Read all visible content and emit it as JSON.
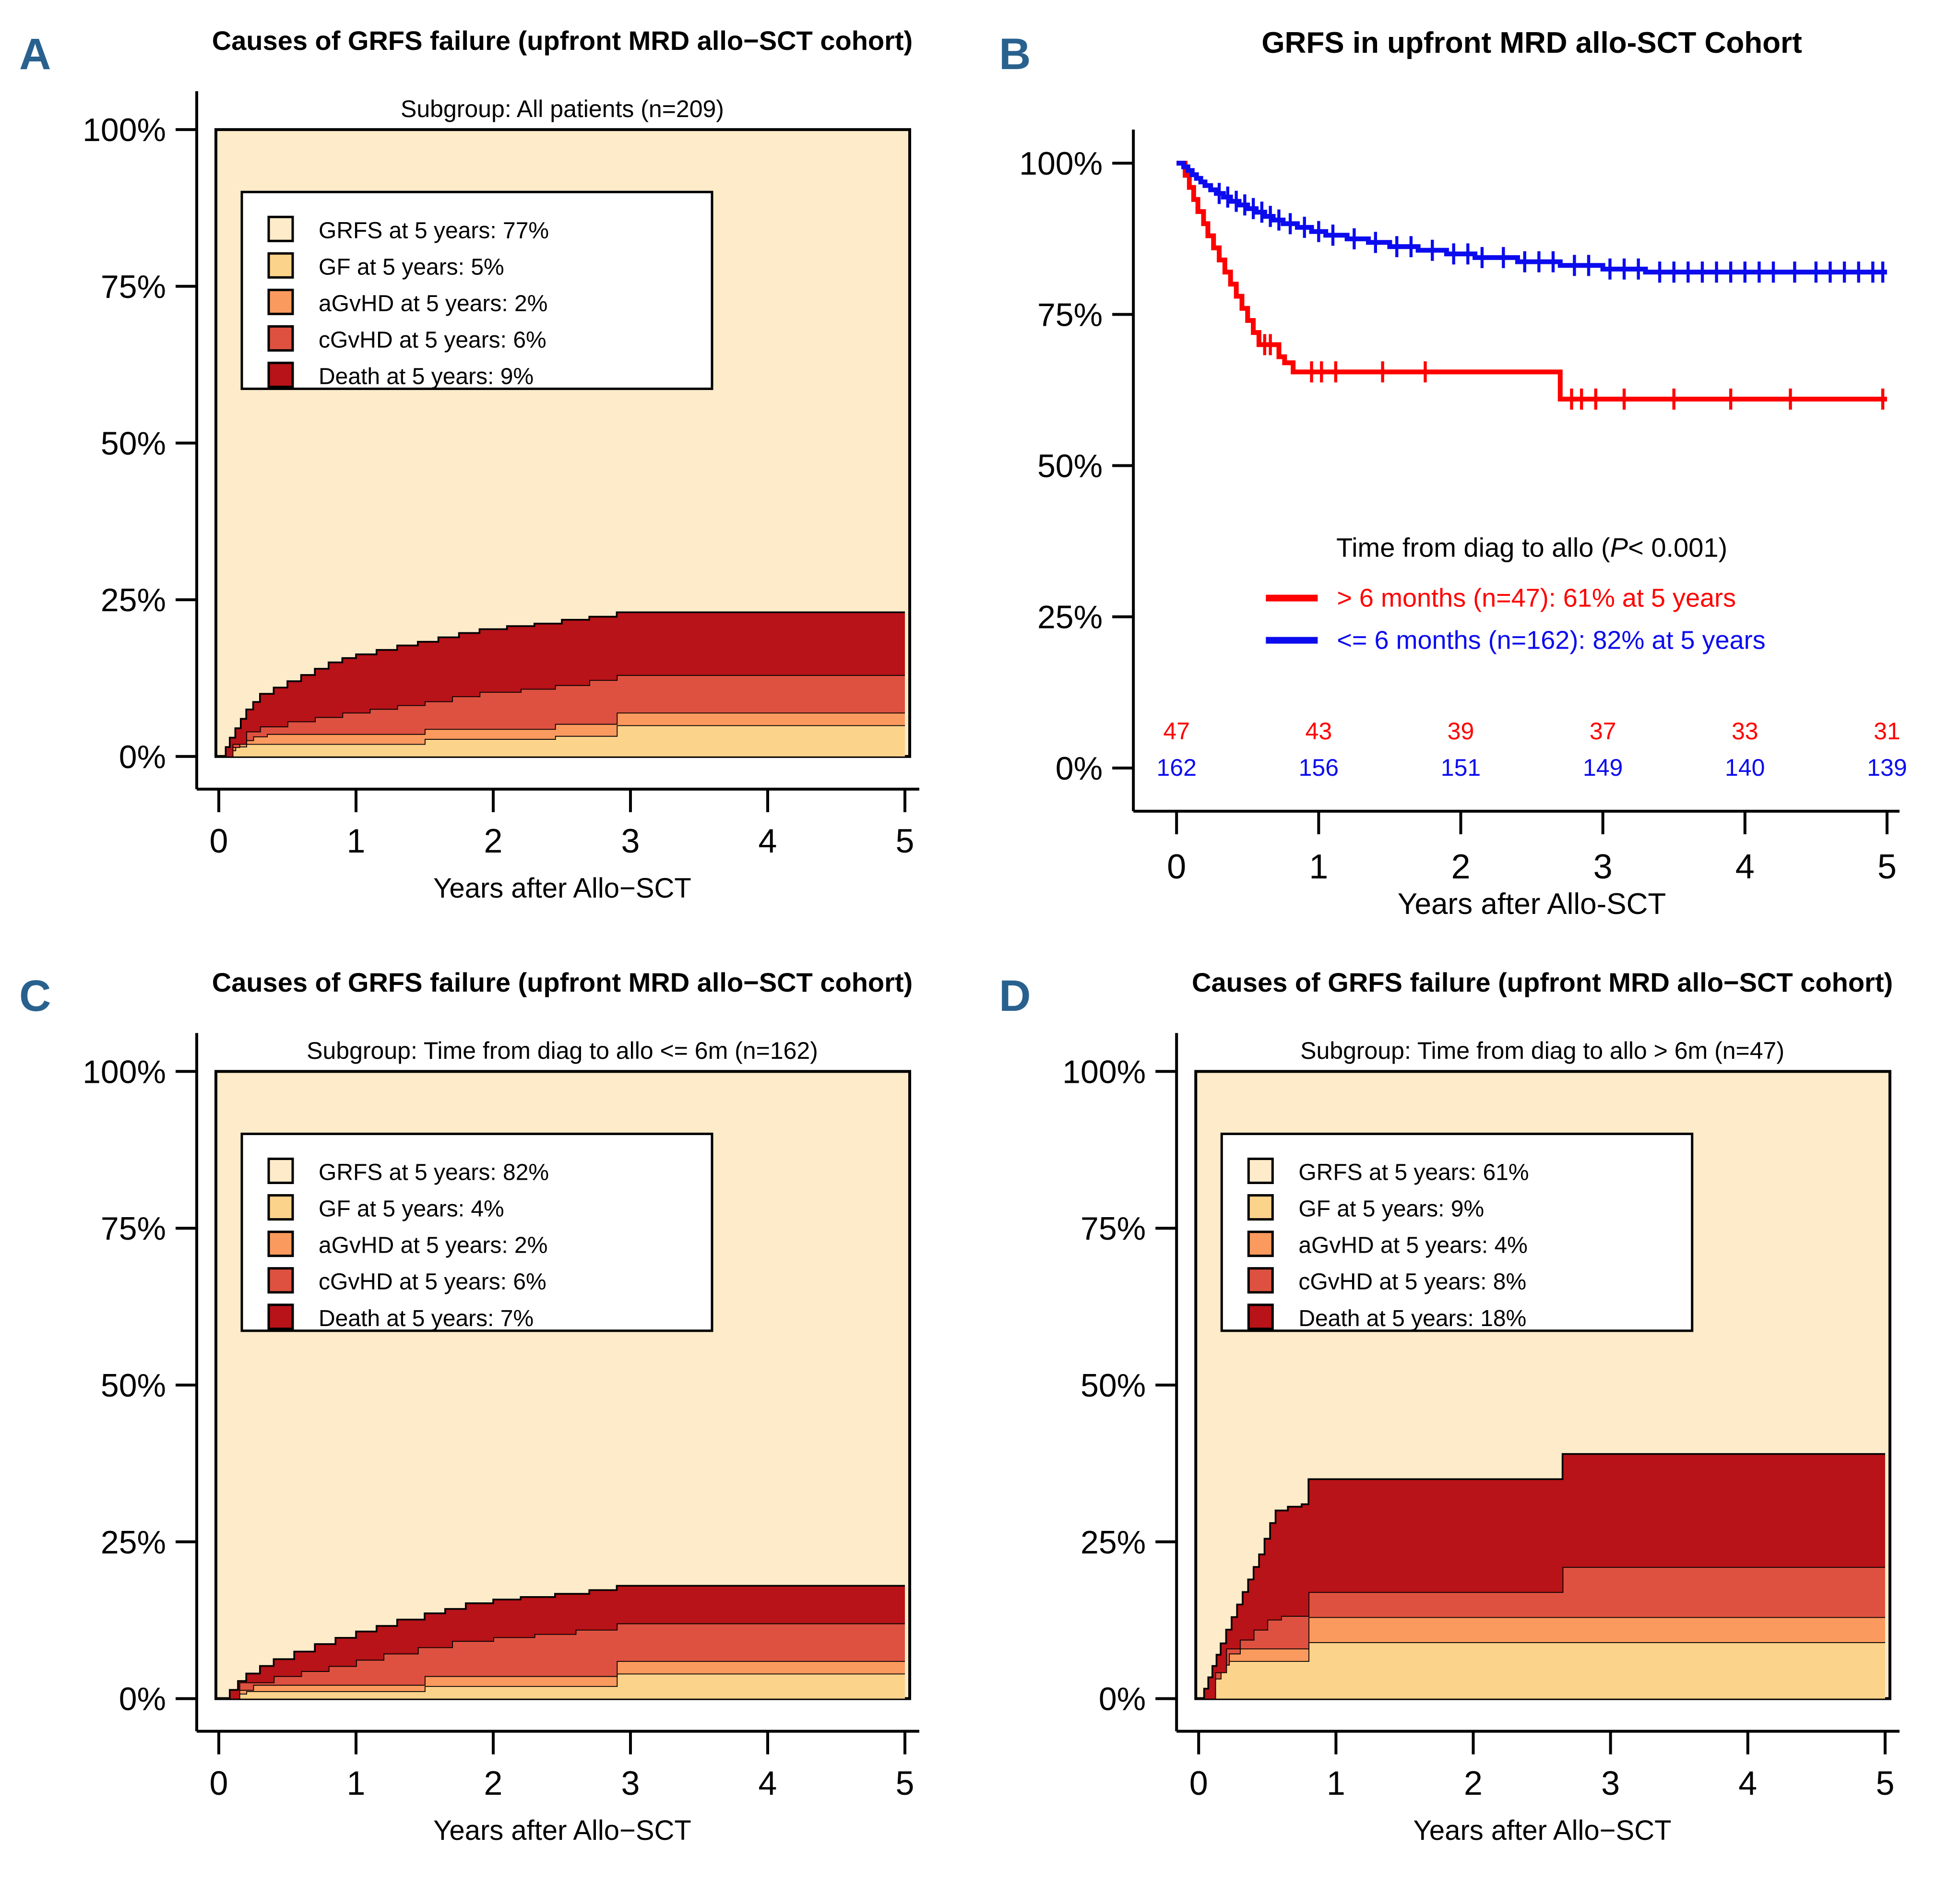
{
  "figure": {
    "background": "#ffffff",
    "letter_color": "#29618E",
    "axis_color": "#000000"
  },
  "chart_data": [
    {
      "id": "A",
      "letter": "A",
      "type": "stacked_area",
      "title": "Causes of GRFS failure (upfront MRD allo−SCT cohort)",
      "subtitle": "Subgroup: All patients (n=209)",
      "xlabel": "Years after Allo−SCT",
      "x_ticks": [
        "0",
        "1",
        "2",
        "3",
        "4",
        "5"
      ],
      "y_ticks": [
        "0%",
        "25%",
        "50%",
        "75%",
        "100%"
      ],
      "xlim": [
        0,
        5
      ],
      "ylim": [
        0,
        100
      ],
      "grid": false,
      "legend_position": "upper-left-inside",
      "colors": {
        "grfs": "#FDEBC9",
        "gf": "#FBD38B",
        "agvhd": "#FB9A5E",
        "cgvhd": "#DE5140",
        "death": "#B71318"
      },
      "legend": [
        {
          "label": "GRFS at 5 years: 77%",
          "color": "#FDEBC9"
        },
        {
          "label": "GF at 5 years: 5%",
          "color": "#FBD38B"
        },
        {
          "label": "aGvHD at 5 years: 2%",
          "color": "#FB9A5E"
        },
        {
          "label": "cGvHD at 5 years: 6%",
          "color": "#DE5140"
        },
        {
          "label": "Death at 5 years: 9%",
          "color": "#B71318"
        }
      ],
      "layers": {
        "gf": [
          [
            0,
            0
          ],
          [
            0.06,
            1
          ],
          [
            0.12,
            1.6
          ],
          [
            0.2,
            2
          ],
          [
            1.5,
            2.8
          ],
          [
            2.45,
            3.3
          ],
          [
            2.9,
            5
          ]
        ],
        "agvhd": [
          [
            0,
            0
          ],
          [
            0.08,
            1.5
          ],
          [
            0.15,
            2.6
          ],
          [
            0.25,
            3.2
          ],
          [
            0.35,
            3.6
          ],
          [
            1.5,
            4.4
          ],
          [
            2.45,
            5.2
          ],
          [
            2.9,
            7
          ]
        ],
        "cgvhd": [
          [
            0,
            0
          ],
          [
            0.1,
            2
          ],
          [
            0.2,
            4
          ],
          [
            0.3,
            4.8
          ],
          [
            0.5,
            5.6
          ],
          [
            0.7,
            6.3
          ],
          [
            0.9,
            7
          ],
          [
            1.1,
            7.6
          ],
          [
            1.3,
            8.2
          ],
          [
            1.5,
            8.8
          ],
          [
            1.7,
            9.6
          ],
          [
            1.9,
            10.3
          ],
          [
            2.2,
            10.8
          ],
          [
            2.45,
            11.4
          ],
          [
            2.7,
            12.2
          ],
          [
            2.9,
            13
          ]
        ],
        "death": [
          [
            0,
            0
          ],
          [
            0.05,
            1.5
          ],
          [
            0.08,
            3
          ],
          [
            0.12,
            4.5
          ],
          [
            0.16,
            6
          ],
          [
            0.2,
            7.5
          ],
          [
            0.25,
            8.7
          ],
          [
            0.3,
            10
          ],
          [
            0.4,
            11
          ],
          [
            0.5,
            12
          ],
          [
            0.6,
            13
          ],
          [
            0.7,
            14
          ],
          [
            0.8,
            15
          ],
          [
            0.9,
            15.7
          ],
          [
            1,
            16.3
          ],
          [
            1.15,
            17
          ],
          [
            1.3,
            17.7
          ],
          [
            1.45,
            18.3
          ],
          [
            1.6,
            19
          ],
          [
            1.75,
            19.7
          ],
          [
            1.9,
            20.3
          ],
          [
            2.1,
            20.8
          ],
          [
            2.3,
            21.2
          ],
          [
            2.5,
            21.8
          ],
          [
            2.7,
            22.3
          ],
          [
            2.9,
            23
          ]
        ]
      }
    },
    {
      "id": "B",
      "letter": "B",
      "type": "km",
      "title": "GRFS in upfront MRD allo-SCT Cohort",
      "xlabel": "Years after Allo-SCT",
      "x_ticks": [
        "0",
        "1",
        "2",
        "3",
        "4",
        "5"
      ],
      "y_ticks": [
        "0%",
        "25%",
        "50%",
        "75%",
        "100%"
      ],
      "xlim": [
        0,
        5
      ],
      "ylim": [
        0,
        100
      ],
      "grid": false,
      "group_legend": {
        "heading_pre": "Time from diag to allo (",
        "heading_italic": "P",
        "heading_post": "< 0.001)",
        "items": [
          {
            "label": "> 6 months (n=47): 61% at 5 years",
            "color": "#FF0000"
          },
          {
            "label": "<= 6 months (n=162): 82% at 5 years",
            "color": "#0B0BEE"
          }
        ]
      },
      "series": [
        {
          "name": "> 6 months",
          "color": "#FF0000",
          "steps": [
            [
              0,
              100
            ],
            [
              0.06,
              98
            ],
            [
              0.09,
              96
            ],
            [
              0.12,
              94
            ],
            [
              0.15,
              92
            ],
            [
              0.19,
              90
            ],
            [
              0.22,
              88
            ],
            [
              0.26,
              86
            ],
            [
              0.3,
              84
            ],
            [
              0.34,
              82
            ],
            [
              0.38,
              80
            ],
            [
              0.42,
              78
            ],
            [
              0.46,
              76
            ],
            [
              0.5,
              74
            ],
            [
              0.54,
              72
            ],
            [
              0.58,
              70
            ],
            [
              0.72,
              68
            ],
            [
              0.76,
              67
            ],
            [
              0.82,
              65.5
            ],
            [
              2.7,
              61
            ]
          ],
          "censors": [
            0.62,
            0.66,
            0.95,
            1.02,
            1.12,
            1.45,
            1.75,
            2.78,
            2.85,
            2.95,
            3.15,
            3.5,
            3.9,
            4.32,
            4.97
          ]
        },
        {
          "name": "<= 6 months",
          "color": "#0B0BEE",
          "steps": [
            [
              0,
              100
            ],
            [
              0.05,
              99.4
            ],
            [
              0.08,
              98.8
            ],
            [
              0.11,
              98.1
            ],
            [
              0.14,
              97.5
            ],
            [
              0.17,
              96.9
            ],
            [
              0.2,
              96.3
            ],
            [
              0.24,
              95.6
            ],
            [
              0.28,
              95
            ],
            [
              0.33,
              94.4
            ],
            [
              0.38,
              93.7
            ],
            [
              0.44,
              93.1
            ],
            [
              0.5,
              92.5
            ],
            [
              0.56,
              91.9
            ],
            [
              0.62,
              91.2
            ],
            [
              0.68,
              90.6
            ],
            [
              0.75,
              90
            ],
            [
              0.85,
              89.4
            ],
            [
              0.95,
              88.7
            ],
            [
              1.05,
              88.1
            ],
            [
              1.2,
              87.5
            ],
            [
              1.35,
              86.9
            ],
            [
              1.5,
              86.2
            ],
            [
              1.7,
              85.6
            ],
            [
              1.9,
              85
            ],
            [
              2.1,
              84.4
            ],
            [
              2.4,
              83.7
            ],
            [
              2.7,
              83.1
            ],
            [
              3,
              82.5
            ],
            [
              3.3,
              82
            ]
          ],
          "censors": [
            0.3,
            0.36,
            0.42,
            0.48,
            0.54,
            0.6,
            0.66,
            0.72,
            0.8,
            0.9,
            1,
            1.1,
            1.25,
            1.4,
            1.55,
            1.65,
            1.8,
            1.95,
            2.05,
            2.15,
            2.3,
            2.45,
            2.55,
            2.65,
            2.8,
            2.9,
            3.05,
            3.15,
            3.25,
            3.4,
            3.5,
            3.6,
            3.7,
            3.8,
            3.9,
            4,
            4.1,
            4.2,
            4.35,
            4.5,
            4.6,
            4.7,
            4.8,
            4.9,
            4.97
          ]
        }
      ],
      "at_risk": {
        "rows": [
          {
            "name": "> 6 months",
            "color": "#FF0000",
            "values": [
              "47",
              "43",
              "39",
              "37",
              "33",
              "31"
            ]
          },
          {
            "name": "<= 6 months",
            "color": "#0B0BEE",
            "values": [
              "162",
              "156",
              "151",
              "149",
              "140",
              "139"
            ]
          }
        ]
      }
    },
    {
      "id": "C",
      "letter": "C",
      "type": "stacked_area",
      "title": "Causes of GRFS failure (upfront MRD allo−SCT cohort)",
      "subtitle": "Subgroup: Time from diag to allo <= 6m (n=162)",
      "xlabel": "Years after Allo−SCT",
      "x_ticks": [
        "0",
        "1",
        "2",
        "3",
        "4",
        "5"
      ],
      "y_ticks": [
        "0%",
        "25%",
        "50%",
        "75%",
        "100%"
      ],
      "xlim": [
        0,
        5
      ],
      "ylim": [
        0,
        100
      ],
      "grid": false,
      "legend_position": "upper-left-inside",
      "colors": {
        "grfs": "#FDEBC9",
        "gf": "#FBD38B",
        "agvhd": "#FB9A5E",
        "cgvhd": "#DE5140",
        "death": "#B71318"
      },
      "legend": [
        {
          "label": "GRFS at 5 years: 82%",
          "color": "#FDEBC9"
        },
        {
          "label": "GF at 5 years: 4%",
          "color": "#FBD38B"
        },
        {
          "label": "aGvHD  at 5 years: 2%",
          "color": "#FB9A5E"
        },
        {
          "label": "cGvHD  at 5 years: 6%",
          "color": "#DE5140"
        },
        {
          "label": "Death at 5 years: 7%",
          "color": "#B71318"
        }
      ],
      "layers": {
        "gf": [
          [
            0,
            0
          ],
          [
            0.1,
            0.8
          ],
          [
            0.2,
            1.2
          ],
          [
            1.5,
            2
          ],
          [
            2.9,
            4
          ]
        ],
        "agvhd": [
          [
            0,
            0
          ],
          [
            0.12,
            1.4
          ],
          [
            0.25,
            2.2
          ],
          [
            1.5,
            3.6
          ],
          [
            2.9,
            6
          ]
        ],
        "cgvhd": [
          [
            0,
            0
          ],
          [
            0.15,
            2.6
          ],
          [
            0.4,
            3.6
          ],
          [
            0.6,
            4.4
          ],
          [
            0.8,
            5.2
          ],
          [
            1,
            6.2
          ],
          [
            1.2,
            7.2
          ],
          [
            1.45,
            8.2
          ],
          [
            1.7,
            9.2
          ],
          [
            2,
            9.8
          ],
          [
            2.3,
            10.3
          ],
          [
            2.6,
            11
          ],
          [
            2.9,
            12
          ]
        ],
        "death": [
          [
            0,
            0
          ],
          [
            0.08,
            1.4
          ],
          [
            0.14,
            2.8
          ],
          [
            0.2,
            4
          ],
          [
            0.3,
            5.2
          ],
          [
            0.4,
            6.3
          ],
          [
            0.55,
            7.5
          ],
          [
            0.7,
            8.7
          ],
          [
            0.85,
            9.7
          ],
          [
            1,
            10.7
          ],
          [
            1.15,
            11.6
          ],
          [
            1.3,
            12.6
          ],
          [
            1.5,
            13.6
          ],
          [
            1.65,
            14.3
          ],
          [
            1.8,
            15.2
          ],
          [
            2,
            15.8
          ],
          [
            2.2,
            16.2
          ],
          [
            2.45,
            16.7
          ],
          [
            2.7,
            17.3
          ],
          [
            2.9,
            18
          ]
        ]
      }
    },
    {
      "id": "D",
      "letter": "D",
      "type": "stacked_area",
      "title": "Causes of GRFS failure (upfront MRD allo−SCT cohort)",
      "subtitle": "Subgroup: Time from diag to allo > 6m (n=47)",
      "xlabel": "Years after Allo−SCT",
      "x_ticks": [
        "0",
        "1",
        "2",
        "3",
        "4",
        "5"
      ],
      "y_ticks": [
        "0%",
        "25%",
        "50%",
        "75%",
        "100%"
      ],
      "xlim": [
        0,
        5
      ],
      "ylim": [
        0,
        100
      ],
      "grid": false,
      "legend_position": "upper-left-inside",
      "colors": {
        "grfs": "#FDEBC9",
        "gf": "#FBD38B",
        "agvhd": "#FB9A5E",
        "cgvhd": "#DE5140",
        "death": "#B71318"
      },
      "legend": [
        {
          "label": "GRFS at 5 years: 61%",
          "color": "#FDEBC9"
        },
        {
          "label": "GF at 5 years: 9%",
          "color": "#FBD38B"
        },
        {
          "label": "aGvHD  at 5 years: 4%",
          "color": "#FB9A5E"
        },
        {
          "label": "cGvHD  at 5 years: 8%",
          "color": "#DE5140"
        },
        {
          "label": "Death at 5 years: 18%",
          "color": "#B71318"
        }
      ],
      "layers": {
        "gf": [
          [
            0,
            0
          ],
          [
            0.08,
            2.2
          ],
          [
            0.12,
            4.2
          ],
          [
            0.18,
            6
          ],
          [
            0.8,
            9
          ]
        ],
        "agvhd": [
          [
            0,
            0
          ],
          [
            0.1,
            3.2
          ],
          [
            0.16,
            5.4
          ],
          [
            0.22,
            7.2
          ],
          [
            0.3,
            8
          ],
          [
            0.8,
            13
          ]
        ],
        "cgvhd": [
          [
            0,
            0
          ],
          [
            0.12,
            4.2
          ],
          [
            0.2,
            8
          ],
          [
            0.3,
            9.4
          ],
          [
            0.4,
            11
          ],
          [
            0.5,
            12.6
          ],
          [
            0.6,
            13.2
          ],
          [
            0.8,
            17
          ],
          [
            2.65,
            21
          ]
        ],
        "death": [
          [
            0,
            0
          ],
          [
            0.04,
            1.6
          ],
          [
            0.07,
            3.4
          ],
          [
            0.1,
            5.2
          ],
          [
            0.13,
            7
          ],
          [
            0.16,
            8.8
          ],
          [
            0.2,
            11
          ],
          [
            0.24,
            13
          ],
          [
            0.28,
            15
          ],
          [
            0.32,
            17
          ],
          [
            0.36,
            19
          ],
          [
            0.4,
            21
          ],
          [
            0.44,
            23
          ],
          [
            0.48,
            25.5
          ],
          [
            0.52,
            28
          ],
          [
            0.56,
            30
          ],
          [
            0.65,
            30.6
          ],
          [
            0.75,
            31
          ],
          [
            0.8,
            35
          ],
          [
            2.65,
            39
          ]
        ]
      }
    }
  ]
}
